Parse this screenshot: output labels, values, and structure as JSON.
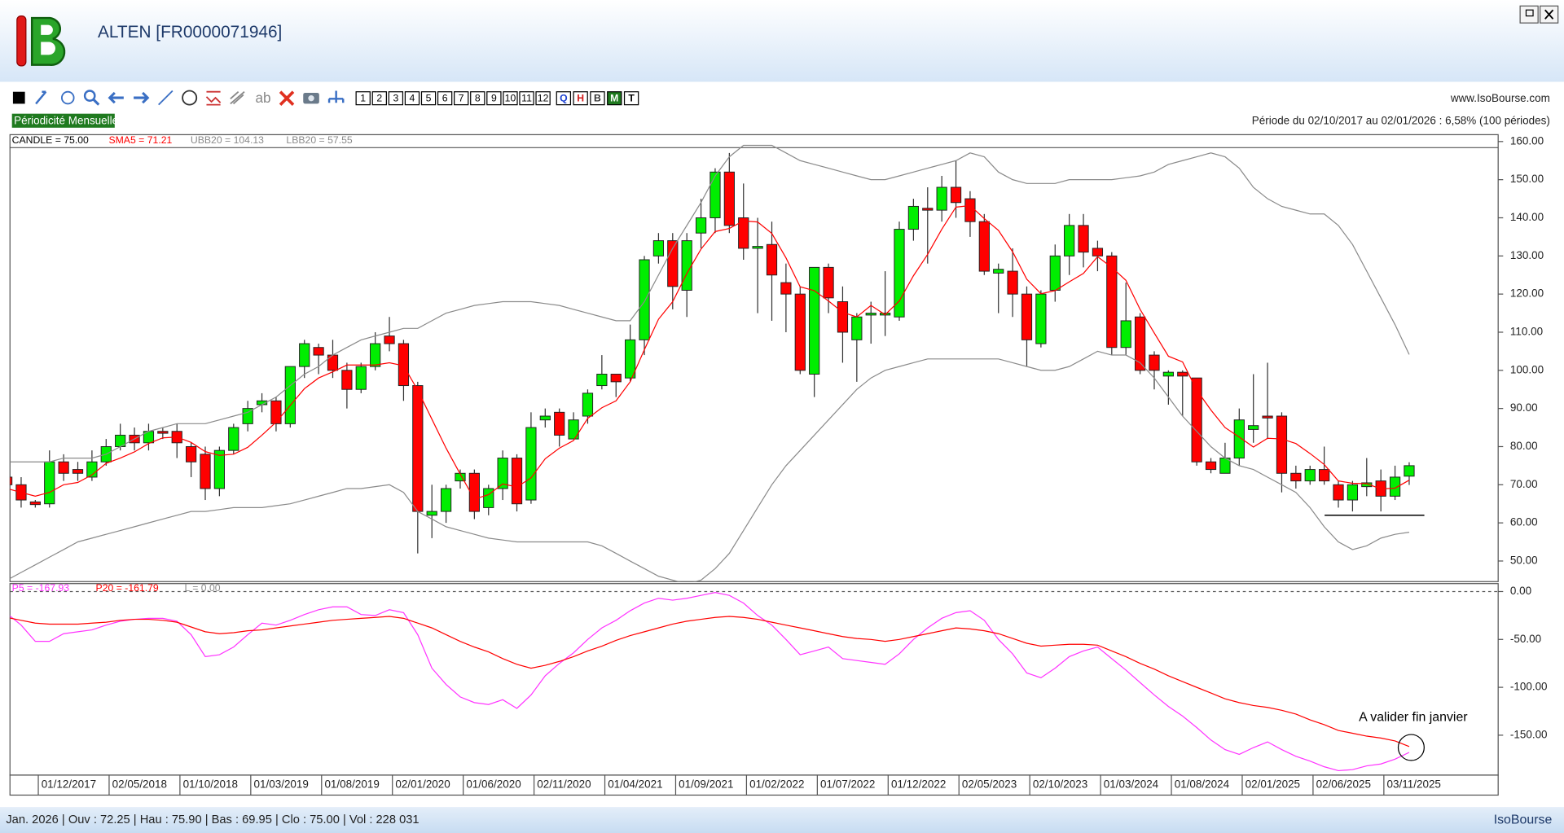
{
  "window": {
    "title": "ALTEN [FR0000071946]",
    "site": "www.IsoBourse.com",
    "periodicity": "Périodicité Mensuelle",
    "period_info": "Période du 02/10/2017 au 02/01/2026 : 6,58% (100 périodes)",
    "status": "Jan. 2026 | Ouv : 72.25 | Hau : 75.90 | Bas : 69.95 | Clo : 75.00 | Vol : 228 031",
    "brand": "IsoBourse"
  },
  "toolbar": {
    "text_tool": "ab",
    "numbers": [
      "1",
      "2",
      "3",
      "4",
      "5",
      "6",
      "7",
      "8",
      "9",
      "10",
      "11",
      "12"
    ],
    "periods": [
      "Q",
      "H",
      "B",
      "M",
      "T"
    ]
  },
  "chart_data": [
    {
      "type": "candlestick",
      "candle_label": "CANDLE = 75.00",
      "up_color": "#00ee00",
      "down_color": "#ff0000",
      "categories": [
        null,
        null,
        "01/12/2017",
        null,
        null,
        null,
        null,
        "02/05/2018",
        null,
        null,
        null,
        null,
        "01/10/2018",
        null,
        null,
        null,
        null,
        "01/03/2019",
        null,
        null,
        null,
        null,
        "01/08/2019",
        null,
        null,
        null,
        null,
        "02/01/2020",
        null,
        null,
        null,
        null,
        "01/06/2020",
        null,
        null,
        null,
        null,
        "02/11/2020",
        null,
        null,
        null,
        null,
        "01/04/2021",
        null,
        null,
        null,
        null,
        "01/09/2021",
        null,
        null,
        null,
        null,
        "01/02/2022",
        null,
        null,
        null,
        null,
        "01/07/2022",
        null,
        null,
        null,
        null,
        "01/12/2022",
        null,
        null,
        null,
        null,
        "02/05/2023",
        null,
        null,
        null,
        null,
        "02/10/2023",
        null,
        null,
        null,
        null,
        "01/03/2024",
        null,
        null,
        null,
        null,
        "01/08/2024",
        null,
        null,
        null,
        null,
        "02/01/2025",
        null,
        null,
        null,
        null,
        "02/06/2025",
        null,
        null,
        null,
        null,
        "03/11/2025",
        null,
        null
      ],
      "open": [
        72,
        70,
        65.5,
        65,
        76,
        74,
        72,
        76,
        80,
        83,
        81,
        84,
        84,
        80,
        78,
        69,
        79,
        86,
        91,
        92,
        86,
        101,
        106,
        104,
        100,
        95,
        101,
        109,
        107,
        96,
        62,
        63,
        71,
        73,
        64,
        69,
        77,
        66,
        87,
        89,
        82,
        88,
        96,
        99,
        98,
        108,
        130,
        134,
        121,
        136,
        140,
        152,
        140,
        132,
        133,
        123,
        120,
        99,
        127,
        118,
        108,
        114.5,
        114.5,
        114,
        137,
        142.5,
        142,
        148,
        145,
        139,
        125.5,
        126,
        120,
        107,
        121,
        130,
        138,
        132,
        130,
        106,
        114,
        104,
        98.5,
        99.5,
        98,
        76,
        73,
        77,
        84.5,
        88,
        88,
        73,
        71,
        74,
        70,
        66,
        69.5,
        71,
        67,
        72.25
      ],
      "high": [
        73,
        72,
        66,
        79,
        78,
        76,
        79,
        82,
        86,
        85,
        86,
        85,
        86,
        81,
        80,
        80,
        86,
        92,
        94,
        93,
        101,
        108,
        107,
        108,
        102,
        102,
        110,
        114,
        108,
        97,
        70,
        70,
        74,
        74,
        70,
        79,
        78,
        89,
        90,
        90,
        89,
        95,
        104,
        99,
        112,
        130,
        136,
        136,
        136,
        145,
        153,
        157,
        149,
        140,
        139,
        128,
        122,
        127,
        128,
        122,
        115,
        118,
        126,
        139,
        145,
        148,
        151,
        155,
        147,
        141,
        128,
        132,
        122,
        121,
        133,
        141,
        141,
        134,
        131,
        123,
        115,
        105,
        100,
        100,
        98,
        77,
        81,
        90,
        99,
        102,
        89,
        75,
        75,
        80,
        71,
        71,
        77,
        74,
        75,
        75.9
      ],
      "low": [
        69,
        64,
        64,
        64,
        71,
        71,
        71,
        75,
        79,
        79,
        79,
        82,
        77,
        72,
        66,
        67,
        78,
        84,
        89,
        84,
        85,
        98,
        99,
        98,
        90,
        94,
        100,
        105,
        92,
        52,
        56,
        60,
        69,
        61,
        62,
        66,
        63,
        65,
        85,
        80,
        82,
        86,
        95,
        93,
        97,
        104,
        128,
        116,
        114,
        132,
        136,
        136,
        129,
        115,
        113,
        110,
        99,
        93,
        115,
        102,
        97,
        107,
        109,
        113,
        134,
        128,
        139,
        140,
        135,
        125,
        115,
        114,
        101,
        106,
        118,
        125,
        127,
        126,
        104,
        104,
        99,
        95,
        91,
        88,
        75,
        73,
        73,
        75,
        81,
        82,
        68,
        69,
        70,
        70,
        64,
        63,
        67,
        63,
        66,
        69.95
      ],
      "close": [
        70,
        66,
        64.8,
        76,
        73,
        73,
        76,
        80,
        83,
        81,
        84,
        83.5,
        81,
        76,
        69,
        79,
        85,
        90,
        92,
        86,
        101,
        107,
        104,
        100,
        95,
        101,
        107,
        107,
        96,
        63,
        63,
        69,
        73,
        63,
        69,
        77,
        65,
        85,
        88,
        83,
        87,
        94,
        99,
        97,
        108,
        129,
        134,
        122,
        134,
        140,
        152,
        138,
        132,
        132.5,
        125,
        120,
        100,
        127,
        119,
        110,
        114,
        115,
        115,
        137,
        143,
        142,
        148,
        144,
        139,
        126,
        126.5,
        120,
        108,
        120,
        130,
        138,
        131,
        130,
        106,
        113,
        100,
        100,
        99.5,
        98.5,
        76,
        74,
        77,
        87,
        85.5,
        87.5,
        73,
        71,
        74,
        71,
        66,
        70,
        70.5,
        67,
        72,
        75
      ],
      "series": [
        {
          "name": "SMA5 = 71.21",
          "color": "#ff0000",
          "values": [
            69,
            68,
            67,
            68,
            70,
            70.6,
            72.6,
            75.6,
            77,
            78.6,
            80.8,
            82.3,
            82.5,
            81.1,
            78.7,
            77.7,
            78,
            79.8,
            83,
            86.4,
            90.8,
            95.2,
            98,
            99.6,
            101.4,
            101.4,
            101.4,
            102,
            101.2,
            94.8,
            87.2,
            79.6,
            72.8,
            66.2,
            67.4,
            70.2,
            69.4,
            71.8,
            76.8,
            79.6,
            81.6,
            87.4,
            90.2,
            92,
            97,
            105.4,
            113.4,
            118,
            125.4,
            131.8,
            136.4,
            137.2,
            139.2,
            138.9,
            135.9,
            129.5,
            121.9,
            120.9,
            118.2,
            115.2,
            114,
            117,
            114.6,
            118.2,
            124.8,
            130.4,
            137,
            142.8,
            143.2,
            139.8,
            136.7,
            131.1,
            123.9,
            120.1,
            120.9,
            123.2,
            125.4,
            129.8,
            127,
            123.6,
            116,
            109.8,
            103.7,
            102.2,
            94.8,
            89.6,
            85,
            82.5,
            79.9,
            82.2,
            82,
            80.8,
            78.2,
            75.3,
            71,
            70.4,
            70.3,
            68.9,
            69.1,
            71.21
          ]
        },
        {
          "name": "UBB20 = 104.13",
          "color": "#8a8a8a",
          "values": [
            76,
            76,
            76,
            76,
            77,
            77,
            77,
            78,
            80,
            82,
            84,
            85,
            86,
            86,
            86,
            87,
            88,
            89,
            91,
            93,
            96,
            99,
            101,
            104,
            106,
            108,
            109,
            110,
            111,
            111,
            113,
            115,
            116,
            117,
            117.5,
            118,
            118,
            118,
            117.5,
            117,
            116,
            115,
            114,
            113,
            113,
            118,
            125,
            132,
            138,
            144,
            151,
            156,
            159,
            159,
            159,
            157,
            155,
            154,
            153,
            152,
            151,
            150,
            150,
            151,
            152,
            153,
            154,
            155,
            157,
            156,
            152,
            150,
            149,
            149,
            149,
            150,
            150,
            150,
            150,
            150.5,
            151,
            152,
            154,
            155,
            156,
            157,
            156,
            153,
            148,
            145,
            143,
            142,
            141,
            141,
            138,
            133,
            126,
            119,
            112,
            104.13
          ]
        },
        {
          "name": "LBB20 = 57.55",
          "color": "#8a8a8a",
          "values": [
            45,
            47,
            49,
            51,
            53,
            55,
            56,
            57,
            58,
            59,
            60,
            61,
            62,
            63,
            63,
            63.5,
            64,
            64,
            64,
            64.5,
            65,
            66,
            67,
            68,
            69,
            69,
            69.5,
            70,
            68,
            63,
            61,
            59,
            58,
            57,
            56,
            55.5,
            55,
            55,
            55,
            55,
            55,
            55,
            54,
            52,
            50,
            48,
            46,
            45,
            44,
            45,
            48,
            52,
            58,
            64,
            70,
            75,
            79,
            83,
            87,
            91,
            95,
            98,
            100,
            101,
            102,
            103,
            103,
            103,
            103,
            103,
            103,
            102,
            101,
            100,
            100,
            101,
            103,
            105,
            104,
            104,
            102,
            98,
            93,
            88,
            84,
            80,
            77,
            75,
            74,
            72,
            70,
            68,
            64,
            59,
            55,
            53,
            54,
            56,
            57,
            57.55
          ]
        }
      ],
      "support": 62,
      "ylim": [
        44.6,
        161.8
      ],
      "yticks": [
        {
          "value": 50,
          "label": "50.00"
        },
        {
          "value": 60,
          "label": "60.00"
        },
        {
          "value": 70,
          "label": "70.00"
        },
        {
          "value": 80,
          "label": "80.00"
        },
        {
          "value": 90,
          "label": "90.00"
        },
        {
          "value": 100,
          "label": "100.00"
        },
        {
          "value": 110,
          "label": "110.00"
        },
        {
          "value": 120,
          "label": "120.00"
        },
        {
          "value": 130,
          "label": "130.00"
        },
        {
          "value": 140,
          "label": "140.00"
        },
        {
          "value": 150,
          "label": "150.00"
        },
        {
          "value": 160,
          "label": "160.00"
        }
      ],
      "grid": false
    },
    {
      "type": "line",
      "series": [
        {
          "name": "P5 = -167.93",
          "color": "#ff33ff",
          "values": [
            -23,
            -35,
            -52,
            -52,
            -44,
            -42,
            -40,
            -35,
            -31,
            -29,
            -28,
            -28,
            -31,
            -45,
            -68,
            -66,
            -58,
            -45,
            -33,
            -35,
            -30,
            -24,
            -19,
            -16,
            -16,
            -24,
            -25,
            -19,
            -22,
            -45,
            -80,
            -97,
            -110,
            -116,
            -118,
            -113,
            -122,
            -108,
            -88,
            -75,
            -64,
            -50,
            -38,
            -30,
            -20,
            -12,
            -7,
            -9,
            -7,
            -4,
            -1,
            -4,
            -12,
            -25,
            -35,
            -50,
            -66,
            -62,
            -58,
            -70,
            -72,
            -74,
            -76,
            -65,
            -50,
            -38,
            -28,
            -22,
            -20,
            -30,
            -50,
            -65,
            -85,
            -90,
            -80,
            -68,
            -62,
            -58,
            -70,
            -82,
            -95,
            -108,
            -120,
            -130,
            -142,
            -155,
            -165,
            -170,
            -163,
            -157,
            -165,
            -172,
            -177,
            -183,
            -187,
            -186,
            -182,
            -180,
            -175,
            -167.93
          ]
        },
        {
          "name": "P20 = -161.79",
          "color": "#ff0000",
          "values": [
            -27,
            -30,
            -33,
            -34,
            -34,
            -34,
            -33,
            -32,
            -30,
            -29,
            -29,
            -30,
            -32,
            -37,
            -42,
            -44,
            -43,
            -41,
            -40,
            -38,
            -36,
            -34,
            -32,
            -30,
            -29,
            -28,
            -27,
            -26,
            -28,
            -33,
            -38,
            -45,
            -52,
            -58,
            -63,
            -70,
            -76,
            -80,
            -77,
            -73,
            -68,
            -62,
            -57,
            -51,
            -46,
            -42,
            -38,
            -34,
            -31,
            -29,
            -27,
            -26,
            -27,
            -29,
            -32,
            -35,
            -38,
            -41,
            -44,
            -47,
            -49,
            -50,
            -52,
            -50,
            -47,
            -44,
            -41,
            -38,
            -39,
            -41,
            -44,
            -49,
            -54,
            -57,
            -56,
            -55,
            -55,
            -56,
            -62,
            -68,
            -75,
            -81,
            -88,
            -94,
            -100,
            -106,
            -112,
            -116,
            -119,
            -121,
            -124,
            -128,
            -134,
            -139,
            -145,
            -148,
            -151,
            -153,
            -156,
            -161.79
          ]
        }
      ],
      "zero_line": {
        "label": "L = 0.00",
        "value": 0,
        "color": "#8a8a8a"
      },
      "annotation": "A valider fin janvier",
      "ylim": [
        -191.7,
        8.3
      ],
      "yticks": [
        {
          "value": 0,
          "label": "0.00"
        },
        {
          "value": -50,
          "label": "-50.00"
        },
        {
          "value": -100,
          "label": "-100.00"
        },
        {
          "value": -150,
          "label": "-150.00"
        }
      ],
      "grid": false
    }
  ]
}
